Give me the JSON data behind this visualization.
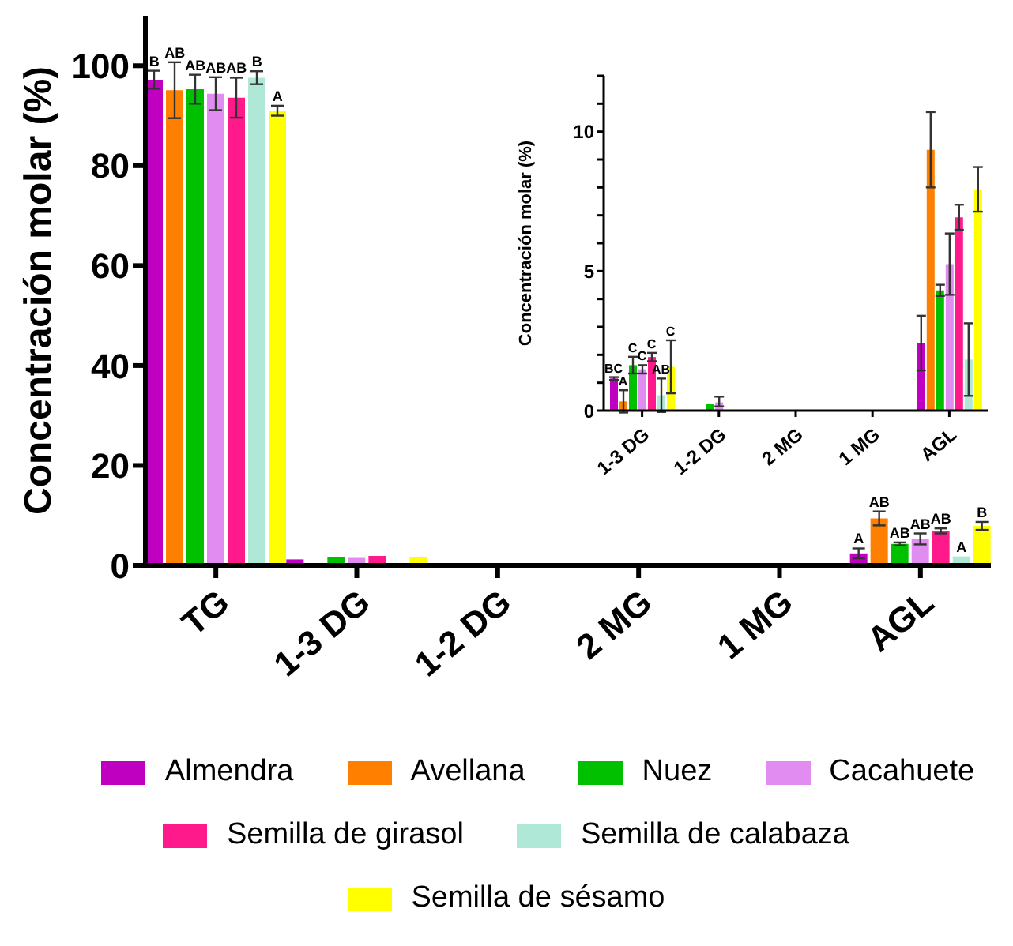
{
  "chart_data": [
    {
      "type": "bar",
      "ylabel": "Concentración molar (%)",
      "categories": [
        "TG",
        "1-3 DG",
        "1-2 DG",
        "2 MG",
        "1 MG",
        "AGL"
      ],
      "ylim": [
        0,
        110
      ],
      "yticks": [
        0,
        20,
        40,
        60,
        80,
        100
      ],
      "legend": "bottom",
      "series": [
        {
          "name": "Almendra",
          "color": "#c000c0",
          "values": [
            97.2,
            1.2,
            0,
            0,
            0,
            2.4
          ],
          "errors": [
            1.8,
            null,
            null,
            null,
            null,
            1.0
          ],
          "value_labels": [
            "B",
            null,
            null,
            null,
            null,
            "A"
          ]
        },
        {
          "name": "Avellana",
          "color": "#ff8000",
          "values": [
            95.1,
            null,
            0,
            0,
            0,
            9.4
          ],
          "errors": [
            5.6,
            null,
            null,
            null,
            null,
            1.4
          ],
          "value_labels": [
            "AB",
            null,
            null,
            null,
            null,
            "AB"
          ]
        },
        {
          "name": "Nuez",
          "color": "#00c000",
          "values": [
            95.3,
            1.6,
            null,
            0,
            0,
            4.3
          ],
          "errors": [
            2.9,
            null,
            null,
            null,
            null,
            0.3
          ],
          "value_labels": [
            "AB",
            null,
            null,
            null,
            null,
            "AB"
          ]
        },
        {
          "name": "Cacahuete",
          "color": "#e08cf0",
          "values": [
            94.4,
            1.5,
            null,
            0,
            0,
            5.3
          ],
          "errors": [
            3.3,
            null,
            null,
            null,
            null,
            1.1
          ],
          "value_labels": [
            "AB",
            null,
            null,
            null,
            null,
            "AB"
          ]
        },
        {
          "name": "Semilla de girasol",
          "color": "#ff1a8c",
          "values": [
            93.6,
            1.9,
            0,
            0,
            0,
            6.9
          ],
          "errors": [
            4,
            null,
            null,
            null,
            null,
            0.5
          ],
          "value_labels": [
            "AB",
            null,
            null,
            null,
            null,
            "AB"
          ]
        },
        {
          "name": "Semilla de calabaza",
          "color": "#b0e8d8",
          "values": [
            97.6,
            null,
            0,
            0,
            0,
            1.8
          ],
          "errors": [
            1.3,
            null,
            null,
            null,
            null,
            null
          ],
          "value_labels": [
            "B",
            null,
            null,
            null,
            null,
            "A"
          ]
        },
        {
          "name": "Semilla de sésamo",
          "color": "#ffff00",
          "values": [
            91.0,
            1.6,
            0,
            0,
            0,
            7.9
          ],
          "errors": [
            1,
            null,
            null,
            null,
            null,
            0.8
          ],
          "value_labels": [
            "A",
            null,
            null,
            null,
            null,
            "B"
          ]
        }
      ]
    },
    {
      "type": "bar",
      "ylabel": "Concentración molar (%)",
      "categories": [
        "1-3 DG",
        "1-2 DG",
        "2 MG",
        "1 MG",
        "AGL"
      ],
      "ylim": [
        0,
        12
      ],
      "yticks": [
        0,
        {
          "value": 1,
          "label": null
        },
        {
          "value": 2,
          "label": null
        },
        {
          "value": 3,
          "label": null
        },
        {
          "value": 4,
          "label": null
        },
        5,
        {
          "value": 6,
          "label": null
        },
        {
          "value": 7,
          "label": null
        },
        {
          "value": 8,
          "label": null
        },
        {
          "value": 9,
          "label": null
        },
        10,
        {
          "value": 11,
          "label": null
        },
        {
          "value": 12,
          "label": null
        }
      ],
      "series": [
        {
          "color": "#c000c0",
          "values": [
            1.15,
            0,
            0,
            0,
            2.42
          ],
          "errors": [
            0.05,
            null,
            null,
            null,
            0.98
          ],
          "value_labels": [
            "BC",
            null,
            null,
            null,
            null
          ]
        },
        {
          "color": "#ff8000",
          "values": [
            0.33,
            0,
            0,
            0,
            9.35
          ],
          "errors": [
            0.4,
            null,
            null,
            null,
            1.35
          ],
          "value_labels": [
            "A",
            null,
            null,
            null,
            null
          ]
        },
        {
          "color": "#00c000",
          "values": [
            1.63,
            0.24,
            0,
            0,
            4.31
          ],
          "errors": [
            0.3,
            null,
            null,
            null,
            0.2
          ],
          "value_labels": [
            "C",
            null,
            null,
            null,
            null
          ]
        },
        {
          "color": "#e08cf0",
          "values": [
            1.48,
            0.3,
            0,
            0,
            5.25
          ],
          "errors": [
            0.15,
            [
              0.15,
              0.5
            ],
            null,
            null,
            1.1
          ],
          "value_labels": [
            "C",
            null,
            null,
            null,
            null
          ]
        },
        {
          "color": "#ff1a8c",
          "values": [
            1.92,
            0,
            0,
            0,
            6.93
          ],
          "errors": [
            0.15,
            null,
            null,
            null,
            0.45
          ],
          "value_labels": [
            "C",
            null,
            null,
            null,
            null
          ]
        },
        {
          "color": "#b0e8d8",
          "values": [
            0.55,
            0,
            0,
            0,
            1.83
          ],
          "errors": [
            0.6,
            null,
            null,
            null,
            1.3
          ],
          "value_labels": [
            "AB",
            null,
            null,
            null,
            null
          ]
        },
        {
          "color": "#ffff00",
          "values": [
            1.57,
            0,
            0,
            0,
            7.93
          ],
          "errors": [
            0.95,
            null,
            null,
            null,
            0.8
          ],
          "value_labels": [
            "C",
            null,
            null,
            null,
            null
          ]
        }
      ]
    }
  ]
}
